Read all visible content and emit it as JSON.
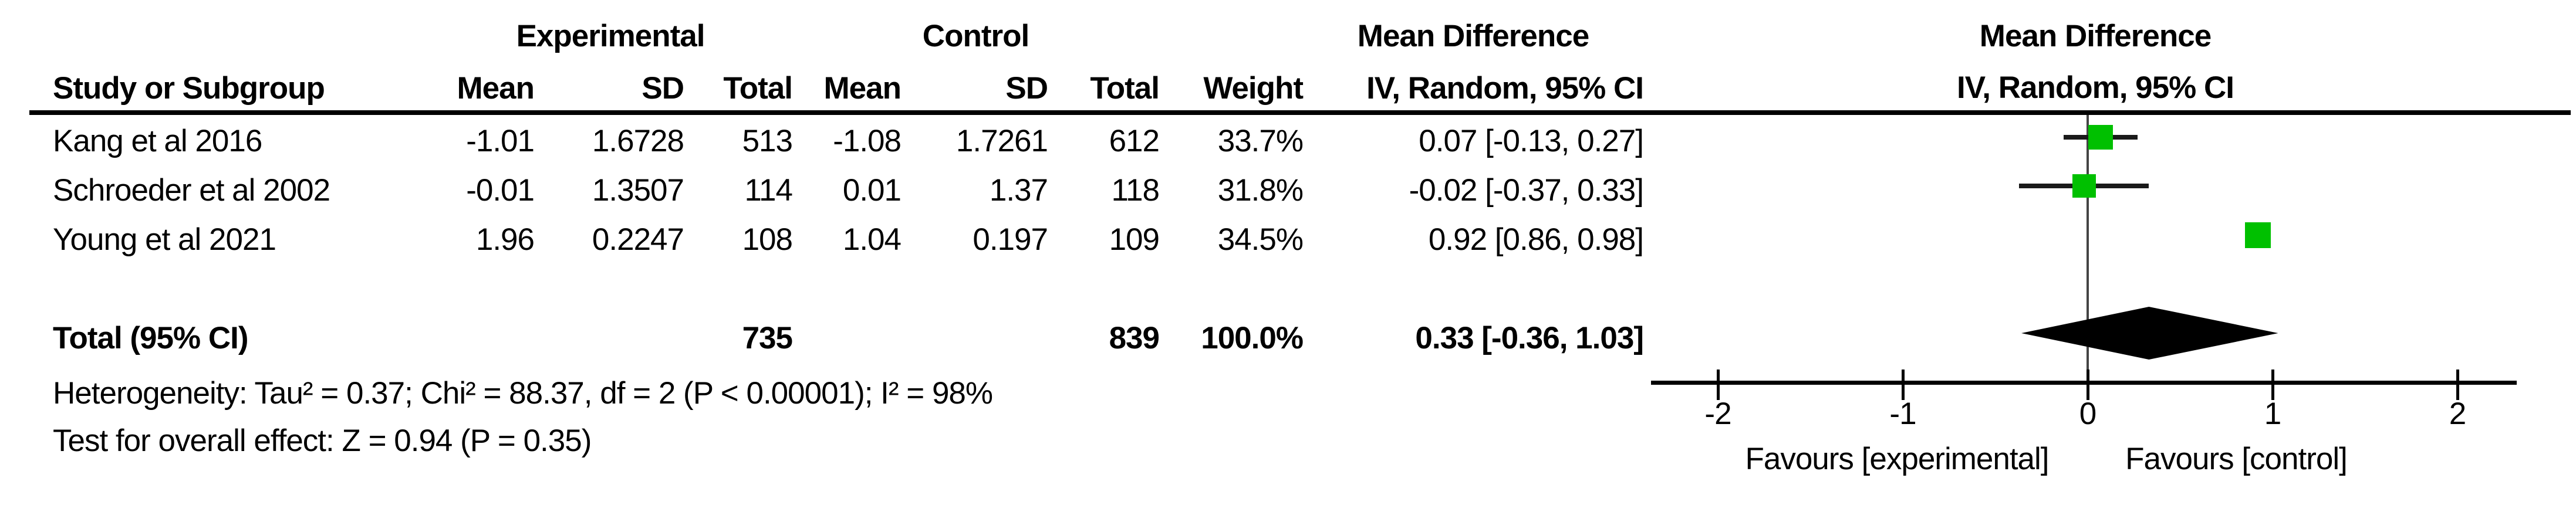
{
  "table": {
    "group_headers": {
      "experimental": "Experimental",
      "control": "Control",
      "mean_difference": "Mean Difference"
    },
    "column_headers": {
      "study": "Study or Subgroup",
      "mean": "Mean",
      "sd": "SD",
      "total": "Total",
      "weight": "Weight",
      "iv_ci": "IV, Random, 95% CI"
    },
    "rows": [
      {
        "study": "Kang et al 2016",
        "exp_mean": "-1.01",
        "exp_sd": "1.6728",
        "exp_total": "513",
        "ctl_mean": "-1.08",
        "ctl_sd": "1.7261",
        "ctl_total": "612",
        "weight": "33.7%",
        "md_ci": "0.07 [-0.13, 0.27]"
      },
      {
        "study": "Schroeder et al 2002",
        "exp_mean": "-0.01",
        "exp_sd": "1.3507",
        "exp_total": "114",
        "ctl_mean": "0.01",
        "ctl_sd": "1.37",
        "ctl_total": "118",
        "weight": "31.8%",
        "md_ci": "-0.02 [-0.37, 0.33]"
      },
      {
        "study": "Young et al 2021",
        "exp_mean": "1.96",
        "exp_sd": "0.2247",
        "exp_total": "108",
        "ctl_mean": "1.04",
        "ctl_sd": "0.197",
        "ctl_total": "109",
        "weight": "34.5%",
        "md_ci": "0.92 [0.86, 0.98]"
      }
    ],
    "total_row": {
      "label": "Total (95% CI)",
      "exp_total": "735",
      "ctl_total": "839",
      "weight": "100.0%",
      "md_ci": "0.33 [-0.36, 1.03]"
    },
    "footnotes": {
      "heterogeneity": "Heterogeneity: Tau² = 0.37; Chi² = 88.37, df = 2 (P < 0.00001); I² = 98%",
      "overall_effect": "Test for overall effect: Z = 0.94 (P = 0.35)"
    }
  },
  "plot": {
    "header_line1": "Mean Difference",
    "header_line2": "IV, Random, 95% CI"
  },
  "chart_data": {
    "type": "forest",
    "effect_measure": "Mean Difference",
    "model": "IV, Random, 95% CI",
    "x_ticks": [
      -2,
      -1,
      0,
      1,
      2
    ],
    "xlim": [
      -2.36,
      2.33
    ],
    "zero_line": 0,
    "marker_color": "#00c000",
    "diamond_color": "#000000",
    "favours_left": "Favours [experimental]",
    "favours_right": "Favours [control]",
    "studies": [
      {
        "name": "Kang et al 2016",
        "md": 0.07,
        "ci_low": -0.13,
        "ci_high": 0.27,
        "weight_pct": 33.7,
        "marker_size": 42
      },
      {
        "name": "Schroeder et al 2002",
        "md": -0.02,
        "ci_low": -0.37,
        "ci_high": 0.33,
        "weight_pct": 31.8,
        "marker_size": 40
      },
      {
        "name": "Young et al 2021",
        "md": 0.92,
        "ci_low": 0.86,
        "ci_high": 0.98,
        "weight_pct": 34.5,
        "marker_size": 44
      }
    ],
    "total": {
      "name": "Total (95% CI)",
      "md": 0.33,
      "ci_low": -0.36,
      "ci_high": 1.03,
      "weight_pct": 100.0
    }
  }
}
